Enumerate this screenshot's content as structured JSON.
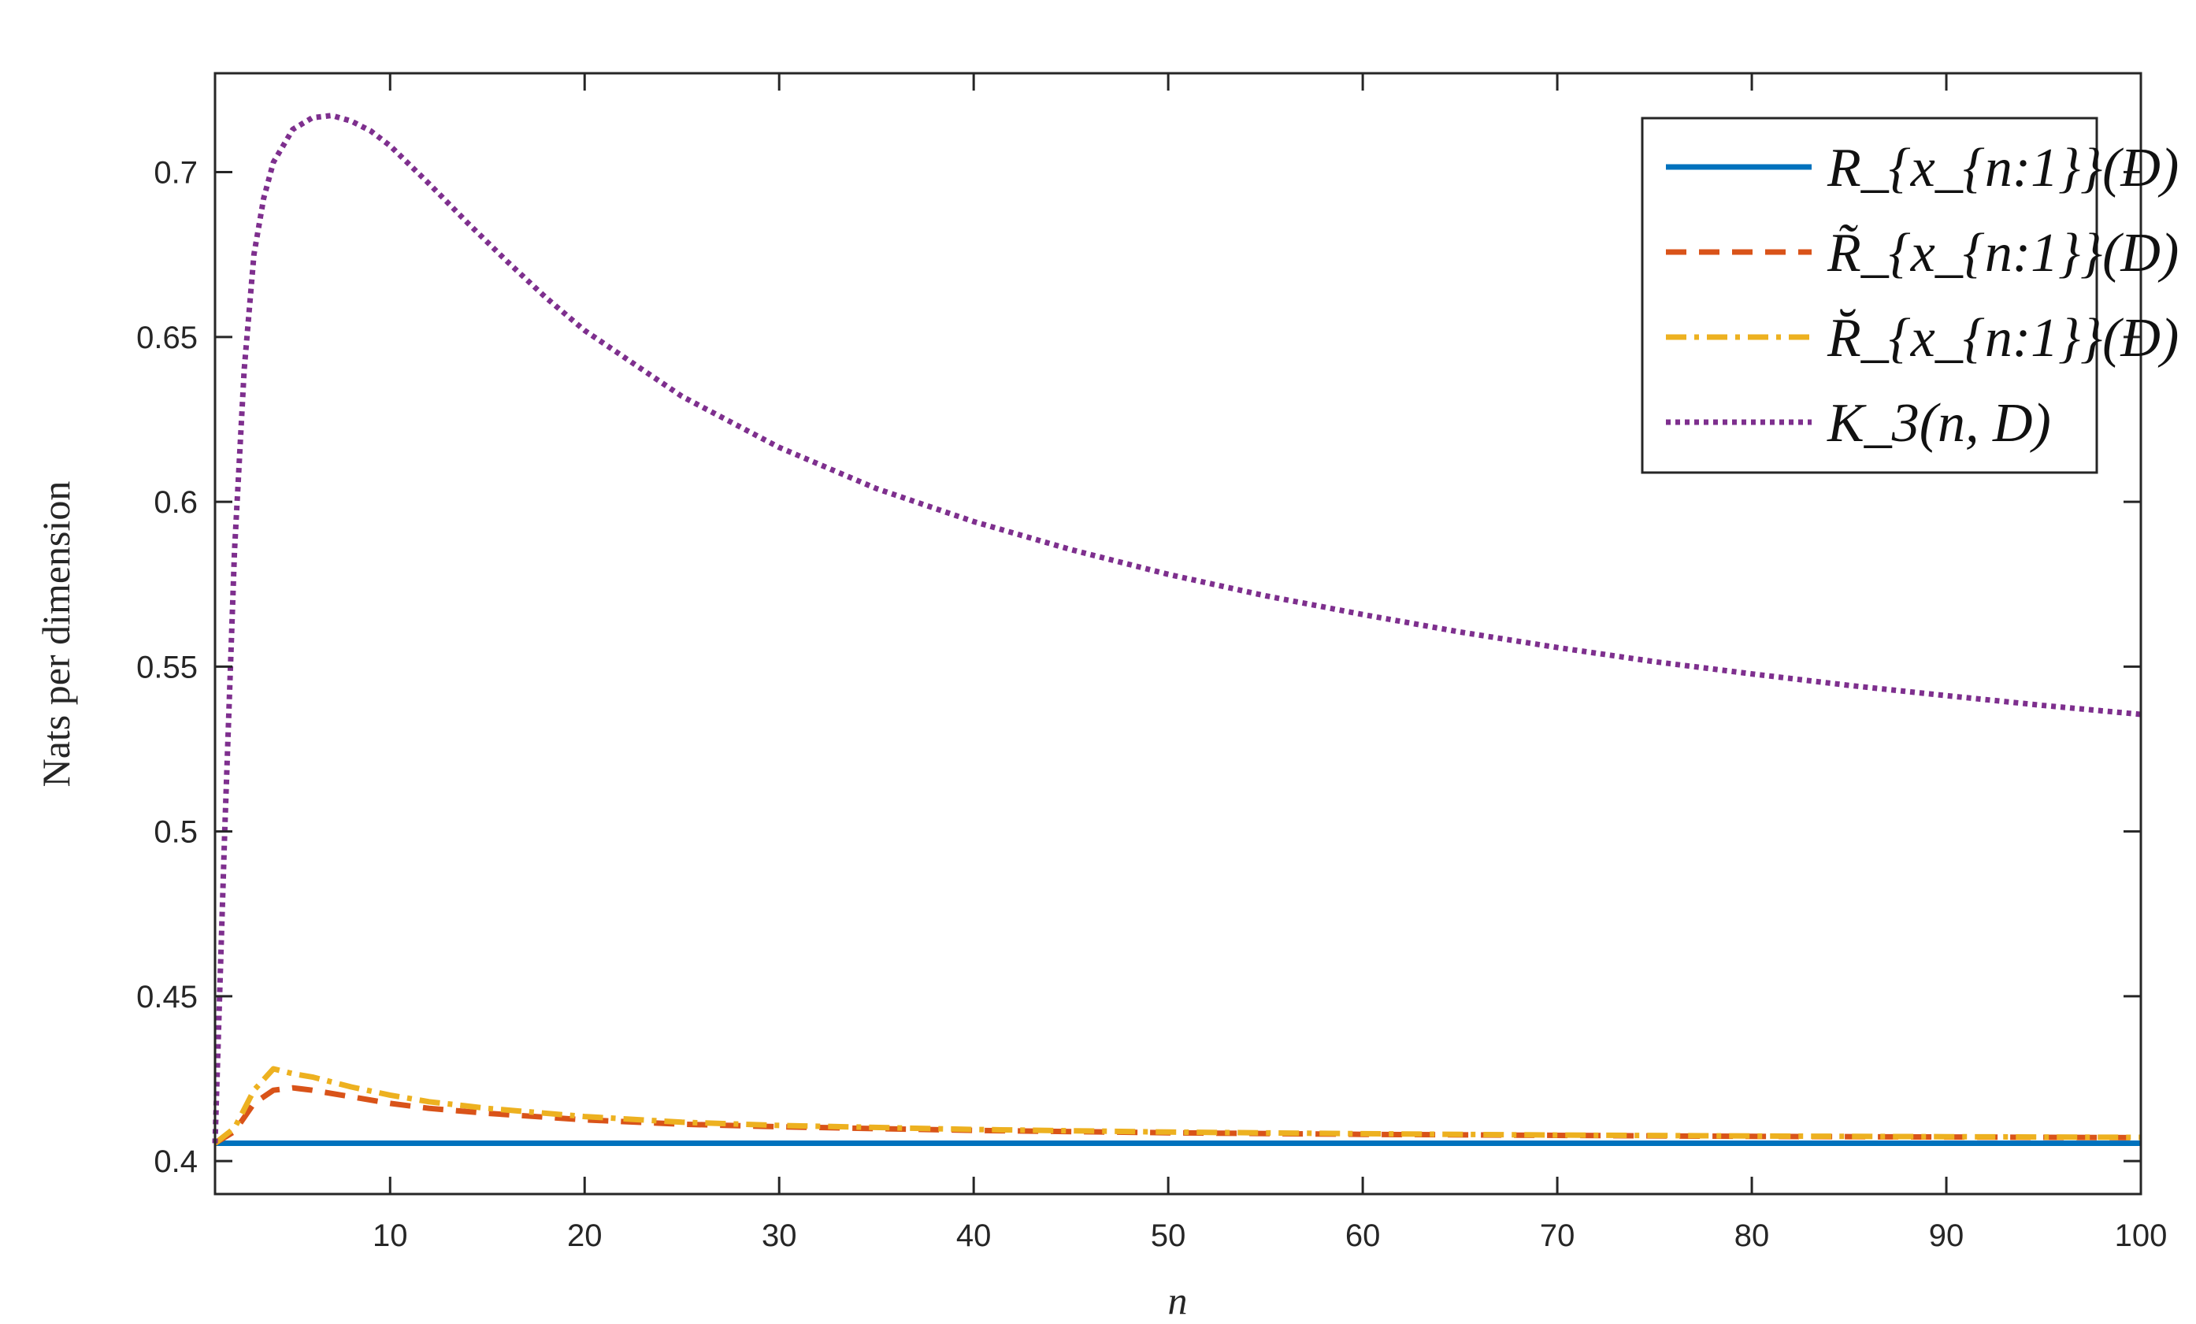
{
  "chart_data": {
    "type": "line",
    "title": "",
    "xlabel": "n",
    "ylabel": "Nats per dimension",
    "xlim": [
      1,
      100
    ],
    "ylim": [
      0.39,
      0.73
    ],
    "xticks": [
      10,
      20,
      30,
      40,
      50,
      60,
      70,
      80,
      90,
      100
    ],
    "xtick_labels": [
      "10",
      "20",
      "30",
      "40",
      "50",
      "60",
      "70",
      "80",
      "90",
      "100"
    ],
    "yticks": [
      0.4,
      0.45,
      0.5,
      0.55,
      0.6,
      0.65,
      0.7
    ],
    "ytick_labels": [
      "0.4",
      "0.45",
      "0.5",
      "0.55",
      "0.6",
      "0.65",
      "0.7"
    ],
    "grid": false,
    "legend_position": "top-right",
    "series": [
      {
        "name": "R_{x_{n:1}}(D)",
        "style": "solid",
        "color": "#0072BD",
        "x": [
          1,
          100
        ],
        "y": [
          0.4054,
          0.4054
        ]
      },
      {
        "name": "R̃_{x_{n:1}}(D)",
        "style": "dashed",
        "color": "#D95319",
        "x": [
          1,
          2,
          3,
          4,
          5,
          6,
          8,
          10,
          12,
          15,
          20,
          25,
          30,
          40,
          50,
          60,
          70,
          80,
          90,
          100
        ],
        "y": [
          0.4054,
          0.409,
          0.4175,
          0.4215,
          0.4222,
          0.4215,
          0.4195,
          0.4175,
          0.416,
          0.4145,
          0.4125,
          0.4112,
          0.4104,
          0.4093,
          0.4086,
          0.4081,
          0.4078,
          0.4075,
          0.4073,
          0.4071
        ]
      },
      {
        "name": "R̆_{x_{n:1}}(D)",
        "style": "dashdot",
        "color": "#EDB120",
        "x": [
          1,
          2,
          3,
          4,
          5,
          6,
          8,
          10,
          12,
          15,
          20,
          25,
          30,
          40,
          50,
          60,
          70,
          80,
          90,
          100
        ],
        "y": [
          0.4054,
          0.41,
          0.4215,
          0.428,
          0.4265,
          0.4255,
          0.4225,
          0.42,
          0.418,
          0.416,
          0.4135,
          0.4118,
          0.4108,
          0.4096,
          0.4088,
          0.4083,
          0.4079,
          0.4076,
          0.4074,
          0.4072
        ]
      },
      {
        "name": "K_3(n, D)",
        "style": "dotted",
        "color": "#7E2F8E",
        "x": [
          1,
          1.5,
          2,
          2.5,
          3,
          3.5,
          4,
          5,
          6,
          7,
          8,
          9,
          10,
          12,
          14,
          16,
          18,
          20,
          25,
          30,
          35,
          40,
          45,
          50,
          55,
          60,
          65,
          70,
          75,
          80,
          85,
          90,
          95,
          100
        ],
        "y": [
          0.4054,
          0.5,
          0.585,
          0.64,
          0.675,
          0.692,
          0.703,
          0.713,
          0.7165,
          0.7172,
          0.7155,
          0.7125,
          0.708,
          0.6965,
          0.6845,
          0.673,
          0.662,
          0.652,
          0.632,
          0.6165,
          0.604,
          0.594,
          0.5855,
          0.578,
          0.5715,
          0.5658,
          0.5605,
          0.5558,
          0.5515,
          0.5478,
          0.5443,
          0.5412,
          0.5382,
          0.5355
        ]
      }
    ]
  }
}
